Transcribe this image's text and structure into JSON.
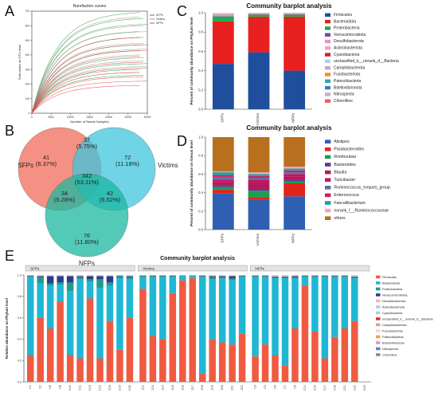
{
  "panels": {
    "a": "A",
    "b": "B",
    "c": "C",
    "d": "D",
    "e": "E"
  },
  "chart_data": [
    {
      "id": "rarefaction",
      "type": "line",
      "title": "Rarefaction curves",
      "xlabel": "Number of Reads Sampled",
      "ylabel": "Sobs index on OTU level",
      "xticks": [
        "0",
        "5000",
        "10000",
        "15000",
        "20000",
        "25000",
        "30000"
      ],
      "yticks": [
        "0",
        "100",
        "200",
        "300",
        "400",
        "500",
        "600",
        "700"
      ],
      "xlim": [
        0,
        30000
      ],
      "ylim": [
        0,
        700
      ],
      "legend": [
        "SFPs",
        "Victims",
        "NFPs"
      ],
      "colors": {
        "SFPs": "#2f9e3c",
        "Victims": "#9a9a9a",
        "NFPs": "#e0474c"
      },
      "final_values": {
        "SFPs": [
          690,
          650,
          610,
          560,
          520,
          470,
          430,
          380,
          340,
          300,
          260
        ],
        "Victims": [
          660,
          600,
          560,
          520,
          480,
          440,
          400,
          360,
          320,
          280
        ],
        "NFPs": [
          520,
          470,
          430,
          390,
          350,
          310,
          280,
          250,
          220,
          190
        ]
      }
    },
    {
      "id": "venn",
      "type": "venn",
      "sets": [
        "SFPs",
        "Victims",
        "NFPs"
      ],
      "colors": {
        "SFPs": "#f26b5b",
        "Victims": "#3fc5dd",
        "NFPs": "#19b8a0"
      },
      "regions": {
        "sfps_only": {
          "count": "41",
          "pct": "(6.37%)"
        },
        "victims_only": {
          "count": "72",
          "pct": "(11.18%)"
        },
        "nfps_only": {
          "count": "76",
          "pct": "(11.80%)"
        },
        "sfps_victims": {
          "count": "37",
          "pct": "(5.75%)"
        },
        "sfps_nfps": {
          "count": "34",
          "pct": "(5.28%)"
        },
        "victims_nfps": {
          "count": "42",
          "pct": "(6.52%)"
        },
        "all": {
          "count": "342",
          "pct": "(53.11%)"
        }
      }
    },
    {
      "id": "phylum_groups",
      "type": "bar",
      "stacked": true,
      "title": "Community barplot analysis",
      "ylabel": "Percent of community abundance on Phylum level",
      "categories": [
        "SFPs",
        "Victims",
        "NFPs"
      ],
      "yticks": [
        "0.0",
        "0.2",
        "0.4",
        "0.6",
        "0.8",
        "1.0"
      ],
      "ylim": [
        0,
        1
      ],
      "series": [
        {
          "name": "Firmicutes",
          "color": "#1f4e9c",
          "values": [
            0.47,
            0.59,
            0.4
          ]
        },
        {
          "name": "Bacteroidota",
          "color": "#e8201f",
          "values": [
            0.44,
            0.37,
            0.56
          ]
        },
        {
          "name": "Proteobacteria",
          "color": "#1eab4b",
          "values": [
            0.05,
            0.02,
            0.02
          ]
        },
        {
          "name": "Verrucomicrobiota",
          "color": "#6a4c9c",
          "values": [
            0.005,
            0.003,
            0.004
          ]
        },
        {
          "name": "Desulfobacterota",
          "color": "#f08fc0",
          "values": [
            0.01,
            0.005,
            0.005
          ]
        },
        {
          "name": "Actinobacteriota",
          "color": "#f3a3b0",
          "values": [
            0.005,
            0.003,
            0.003
          ]
        },
        {
          "name": "Cyanobacteria",
          "color": "#d8202a",
          "values": [
            0.002,
            0.002,
            0.002
          ]
        },
        {
          "name": "unclassified_k__norank_d__Bacteria",
          "color": "#a9d5e8",
          "values": [
            0.004,
            0.003,
            0.002
          ]
        },
        {
          "name": "Campilobacterota",
          "color": "#c7a4c9",
          "values": [
            0.002,
            0.002,
            0.002
          ]
        },
        {
          "name": "Fusobacteriota",
          "color": "#f48e2d",
          "values": [
            0.002,
            0.001,
            0.001
          ]
        },
        {
          "name": "Patescibacteria",
          "color": "#2aa6b6",
          "values": [
            0.002,
            0.001,
            0.001
          ]
        },
        {
          "name": "Bdellovibrionota",
          "color": "#3b7dc4",
          "values": [
            0.001,
            0.001,
            0.001
          ]
        },
        {
          "name": "Nitrospirota",
          "color": "#d6a9c9",
          "values": [
            0.001,
            0.001,
            0.001
          ]
        },
        {
          "name": "Chloroflexi",
          "color": "#f15a60",
          "values": [
            0.001,
            0.001,
            0.001
          ]
        }
      ]
    },
    {
      "id": "genus_groups",
      "type": "bar",
      "stacked": true,
      "title": "Community barplot analysis",
      "ylabel": "Percent of community abundance on Genus level",
      "categories": [
        "SFPs",
        "Victims",
        "NFPs"
      ],
      "yticks": [
        "0.0",
        "0.2",
        "0.4",
        "0.6",
        "0.8",
        "1.0"
      ],
      "ylim": [
        0,
        1
      ],
      "series": [
        {
          "name": "Alistipes",
          "color": "#2f5fb3",
          "values": [
            0.39,
            0.32,
            0.36
          ]
        },
        {
          "name": "Parabacteroides",
          "color": "#e2231a",
          "values": [
            0.04,
            0.03,
            0.14
          ]
        },
        {
          "name": "Romboutsia",
          "color": "#1c9e55",
          "values": [
            0.03,
            0.07,
            0.02
          ]
        },
        {
          "name": "Bacteroides",
          "color": "#5a3a8c",
          "values": [
            0.02,
            0.02,
            0.02
          ]
        },
        {
          "name": "Blautia",
          "color": "#b5175b",
          "values": [
            0.03,
            0.06,
            0.03
          ]
        },
        {
          "name": "Turicibacter",
          "color": "#c2185b",
          "values": [
            0.03,
            0.04,
            0.03
          ]
        },
        {
          "name": "Ruminococcus_torques_group",
          "color": "#5b6fb0",
          "values": [
            0.03,
            0.02,
            0.02
          ]
        },
        {
          "name": "Enterococcus",
          "color": "#d81b60",
          "values": [
            0.02,
            0.02,
            0.02
          ]
        },
        {
          "name": "Faecalibacterium",
          "color": "#1aa3a3",
          "values": [
            0.03,
            0.02,
            0.02
          ]
        },
        {
          "name": "norank_f__Ruminococcaceae",
          "color": "#f4a3b8",
          "values": [
            0.01,
            0.02,
            0.02
          ]
        },
        {
          "name": "others",
          "color": "#b8701e",
          "values": [
            0.37,
            0.38,
            0.32
          ]
        }
      ]
    },
    {
      "id": "phylum_samples",
      "type": "bar",
      "stacked": true,
      "title": "Community barplot analysis",
      "ylabel": "Relative abundance on Phylum level",
      "groups": [
        {
          "name": "SFPs",
          "samples": [
            "C1",
            "C2",
            "C6",
            "C8",
            "C10",
            "C11",
            "C13",
            "C14",
            "C16",
            "C19",
            "C20"
          ]
        },
        {
          "name": "Victims",
          "samples": [
            "Z11",
            "Z13",
            "Z14",
            "Z15",
            "Z16",
            "Z17",
            "Z18",
            "Z19",
            "Z20",
            "Z21",
            "Z22"
          ]
        },
        {
          "name": "NFPs",
          "samples": [
            "C3",
            "C4",
            "C5",
            "C7",
            "C9",
            "C12",
            "C15",
            "C17",
            "C18",
            "C21",
            "C22",
            "C23"
          ]
        }
      ],
      "yticks": [
        "0.0",
        "0.2",
        "0.4",
        "0.6",
        "0.8",
        "1.0"
      ],
      "ylim": [
        0,
        1
      ],
      "series": [
        {
          "name": "Firmicutes",
          "color": "#f05a40",
          "values": [
            0.25,
            0.6,
            0.5,
            0.75,
            0.25,
            0.22,
            0.78,
            0.22,
            0.57,
            0.3,
            0.6,
            0.87,
            0.43,
            0.4,
            0.83,
            0.95,
            0.97,
            0.08,
            0.4,
            0.37,
            0.35,
            0.45,
            0.24,
            0.35,
            0.25,
            0.15,
            0.5,
            0.9,
            0.47,
            0.22,
            0.42,
            0.5,
            0.57
          ]
        },
        {
          "name": "Bacteroidota",
          "color": "#20b7d4",
          "values": [
            0.73,
            0.32,
            0.4,
            0.16,
            0.6,
            0.74,
            0.16,
            0.66,
            0.33,
            0.67,
            0.36,
            0.11,
            0.55,
            0.58,
            0.15,
            0.04,
            0.02,
            0.9,
            0.56,
            0.6,
            0.6,
            0.53,
            0.74,
            0.63,
            0.72,
            0.82,
            0.47,
            0.08,
            0.51,
            0.76,
            0.56,
            0.48,
            0.4
          ]
        },
        {
          "name": "Proteobacteria",
          "color": "#1e9c8c",
          "values": [
            0.01,
            0.06,
            0.02,
            0.02,
            0.08,
            0.02,
            0.02,
            0.08,
            0.03,
            0.02,
            0.02,
            0.01,
            0.01,
            0.01,
            0.01,
            0.005,
            0.005,
            0.01,
            0.02,
            0.01,
            0.02,
            0.01,
            0.01,
            0.01,
            0.01,
            0.01,
            0.01,
            0.01,
            0.01,
            0.01,
            0.01,
            0.01,
            0.01
          ]
        },
        {
          "name": "Verrucomicrobiota",
          "color": "#2b3c8f",
          "values": [
            0.005,
            0.01,
            0.07,
            0.06,
            0.06,
            0.01,
            0.03,
            0.03,
            0.06,
            0.005,
            0.01,
            0.005,
            0.005,
            0.005,
            0.005,
            0.002,
            0.002,
            0.005,
            0.01,
            0.01,
            0.02,
            0.005,
            0.005,
            0.005,
            0.005,
            0.005,
            0.01,
            0.005,
            0.005,
            0.005,
            0.005,
            0.005,
            0.005
          ]
        },
        {
          "name": "Desulfobacterota",
          "color": "#f0b6b0",
          "values": [
            0.003,
            0.003,
            0.003,
            0.003,
            0.003,
            0.003,
            0.003,
            0.003,
            0.003,
            0.003,
            0.003,
            0.003,
            0.003,
            0.003,
            0.003,
            0.002,
            0.002,
            0.003,
            0.003,
            0.003,
            0.003,
            0.003,
            0.003,
            0.003,
            0.003,
            0.003,
            0.003,
            0.003,
            0.003,
            0.003,
            0.003,
            0.003,
            0.003
          ]
        },
        {
          "name": "Actinobacteriota",
          "color": "#bfc8e0",
          "values": [
            0.002,
            0.002,
            0.002,
            0.002,
            0.002,
            0.002,
            0.002,
            0.002,
            0.002,
            0.002,
            0.002,
            0.002,
            0.002,
            0.002,
            0.002,
            0.002,
            0.002,
            0.002,
            0.002,
            0.002,
            0.002,
            0.002,
            0.002,
            0.002,
            0.002,
            0.002,
            0.002,
            0.002,
            0.002,
            0.002,
            0.002,
            0.002,
            0.002
          ]
        },
        {
          "name": "Cyanobacteria",
          "color": "#9fd6cf",
          "values": [
            0.001,
            0.001,
            0.001,
            0.001,
            0.001,
            0.001,
            0.001,
            0.001,
            0.001,
            0.001,
            0.001,
            0.001,
            0.001,
            0.001,
            0.001,
            0.001,
            0.001,
            0.001,
            0.001,
            0.001,
            0.001,
            0.001,
            0.001,
            0.001,
            0.001,
            0.001,
            0.001,
            0.001,
            0.001,
            0.001,
            0.001,
            0.001,
            0.001
          ]
        },
        {
          "name": "unclassified_k__norank_d__Bacteria",
          "color": "#e8312a",
          "values": [
            0.001,
            0.001,
            0.001,
            0.001,
            0.001,
            0.001,
            0.001,
            0.001,
            0.001,
            0.001,
            0.001,
            0.001,
            0.001,
            0.001,
            0.001,
            0.001,
            0.001,
            0.001,
            0.001,
            0.001,
            0.001,
            0.001,
            0.001,
            0.001,
            0.001,
            0.001,
            0.001,
            0.001,
            0.001,
            0.001,
            0.001,
            0.001,
            0.001
          ]
        },
        {
          "name": "Campilobacterota",
          "color": "#b0b0b0",
          "values": [
            0.001,
            0.001,
            0.001,
            0.001,
            0.001,
            0.001,
            0.001,
            0.001,
            0.001,
            0.001,
            0.001,
            0.001,
            0.001,
            0.001,
            0.001,
            0.001,
            0.001,
            0.001,
            0.001,
            0.001,
            0.001,
            0.001,
            0.001,
            0.001,
            0.001,
            0.001,
            0.001,
            0.001,
            0.001,
            0.001,
            0.001,
            0.001,
            0.001
          ]
        },
        {
          "name": "Fusobacteriota",
          "color": "#f7d7c4",
          "values": [
            0.001,
            0.001,
            0.001,
            0.001,
            0.001,
            0.001,
            0.001,
            0.001,
            0.001,
            0.001,
            0.001,
            0.001,
            0.001,
            0.001,
            0.001,
            0.001,
            0.001,
            0.001,
            0.001,
            0.001,
            0.001,
            0.001,
            0.001,
            0.001,
            0.001,
            0.001,
            0.001,
            0.001,
            0.001,
            0.001,
            0.001,
            0.001,
            0.001
          ]
        },
        {
          "name": "Patescibacteria",
          "color": "#f3a24b",
          "values": [
            0.001,
            0.001,
            0.001,
            0.001,
            0.001,
            0.001,
            0.001,
            0.001,
            0.001,
            0.001,
            0.001,
            0.001,
            0.001,
            0.001,
            0.001,
            0.001,
            0.001,
            0.001,
            0.001,
            0.001,
            0.001,
            0.001,
            0.001,
            0.001,
            0.001,
            0.001,
            0.001,
            0.001,
            0.001,
            0.001,
            0.001,
            0.001,
            0.001
          ]
        },
        {
          "name": "Bdellovibrionota",
          "color": "#c9a0dc",
          "values": [
            0.001,
            0.001,
            0.001,
            0.001,
            0.001,
            0.001,
            0.001,
            0.001,
            0.001,
            0.001,
            0.001,
            0.001,
            0.001,
            0.001,
            0.001,
            0.001,
            0.001,
            0.001,
            0.001,
            0.001,
            0.001,
            0.001,
            0.001,
            0.001,
            0.001,
            0.001,
            0.001,
            0.001,
            0.001,
            0.001,
            0.001,
            0.001,
            0.001
          ]
        },
        {
          "name": "Nitrospirota",
          "color": "#6b7fb8",
          "values": [
            0.001,
            0.001,
            0.001,
            0.001,
            0.001,
            0.001,
            0.001,
            0.001,
            0.001,
            0.001,
            0.001,
            0.001,
            0.001,
            0.001,
            0.001,
            0.001,
            0.001,
            0.001,
            0.001,
            0.001,
            0.001,
            0.001,
            0.001,
            0.001,
            0.001,
            0.001,
            0.001,
            0.001,
            0.001,
            0.001,
            0.001,
            0.001,
            0.001
          ]
        },
        {
          "name": "Chloroflexi",
          "color": "#8a8a8a",
          "values": [
            0.001,
            0.001,
            0.001,
            0.001,
            0.001,
            0.001,
            0.001,
            0.001,
            0.001,
            0.001,
            0.001,
            0.001,
            0.001,
            0.001,
            0.001,
            0.001,
            0.001,
            0.001,
            0.001,
            0.001,
            0.001,
            0.001,
            0.001,
            0.001,
            0.001,
            0.001,
            0.001,
            0.001,
            0.001,
            0.001,
            0.001,
            0.001,
            0.001
          ]
        }
      ]
    }
  ]
}
